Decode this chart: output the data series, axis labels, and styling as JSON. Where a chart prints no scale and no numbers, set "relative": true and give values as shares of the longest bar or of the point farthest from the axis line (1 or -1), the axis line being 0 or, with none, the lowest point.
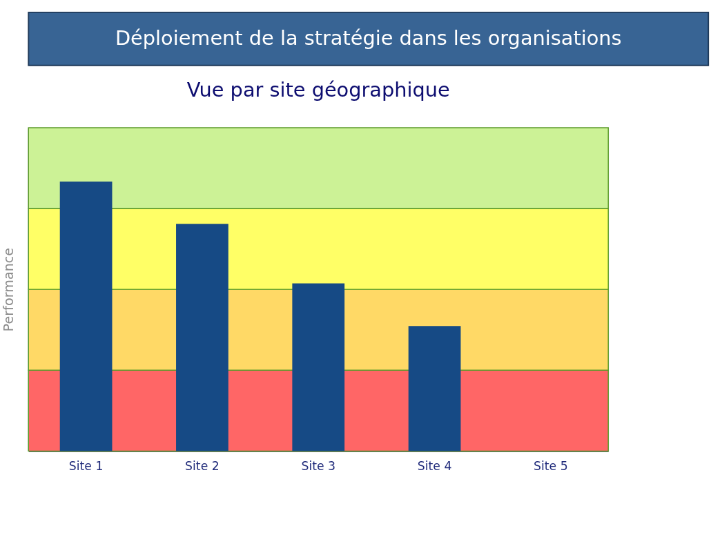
{
  "chart_data": {
    "type": "bar",
    "title": "Déploiement de la stratégie dans les organisations",
    "subtitle": "Vue par site géographique",
    "ylabel": "Performance",
    "categories": [
      "Site 1",
      "Site 2",
      "Site 3",
      "Site 4",
      "Site 5"
    ],
    "relative": true,
    "series": [
      {
        "color": "#164a85",
        "values": [
          1,
          0.843,
          0.622,
          0.464,
          null
        ]
      }
    ],
    "bands": [
      {
        "axis": "y",
        "from": 0,
        "to": 0.3,
        "color": "#ff6666"
      },
      {
        "axis": "y",
        "from": 0.3,
        "to": 0.6,
        "color": "#ffd966"
      },
      {
        "axis": "y",
        "from": 0.6,
        "to": 0.9,
        "color": "#ffff66"
      },
      {
        "axis": "y",
        "from": 0.9,
        "to": 1.2,
        "color": "#ccf296"
      }
    ]
  }
}
